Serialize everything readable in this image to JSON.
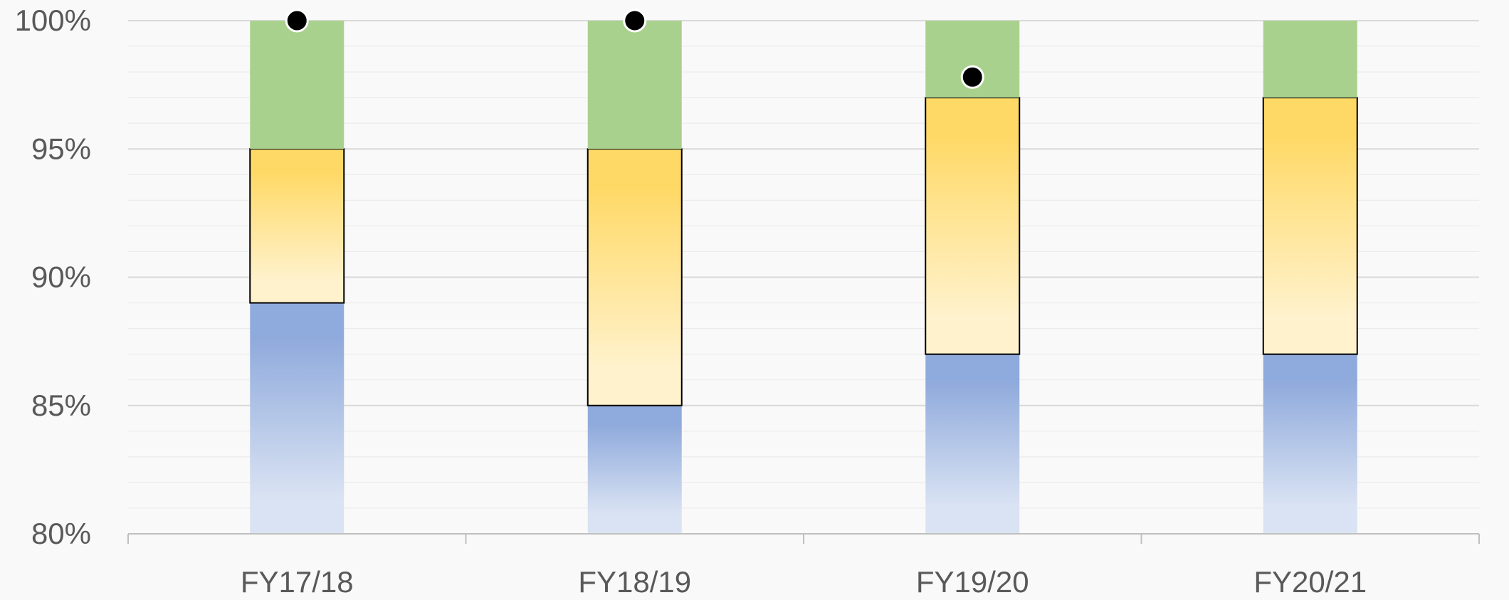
{
  "chart_data": {
    "type": "bar",
    "stacked": true,
    "categories": [
      "FY17/18",
      "FY18/19",
      "FY19/20",
      "FY20/21"
    ],
    "ylim": [
      0.8,
      1.0
    ],
    "yticks": [
      "80%",
      "85%",
      "90%",
      "95%",
      "100%"
    ],
    "ytick_values": [
      0.8,
      0.85,
      0.9,
      0.95,
      1.0
    ],
    "grid": true,
    "legend": "none",
    "bands": [
      {
        "key": "lower",
        "from": [
          0.8,
          0.8,
          0.8,
          0.8
        ],
        "to": [
          0.89,
          0.85,
          0.87,
          0.87
        ],
        "color_top": "#8faadc",
        "color_bottom": "#dae3f3",
        "outlined": false
      },
      {
        "key": "middle",
        "from": [
          0.89,
          0.85,
          0.87,
          0.87
        ],
        "to": [
          0.95,
          0.95,
          0.97,
          0.97
        ],
        "color_top": "#ffd966",
        "color_bottom": "#fff2cc",
        "outlined": true
      },
      {
        "key": "upper",
        "from": [
          0.95,
          0.95,
          0.97,
          0.97
        ],
        "to": [
          1.0,
          1.0,
          1.0,
          1.0
        ],
        "color_top": "#a9d18e",
        "color_bottom": "#a9d18e",
        "outlined": false
      }
    ],
    "points": [
      1.0,
      1.0,
      0.978,
      null
    ],
    "colors": {
      "point": "#000000",
      "point_edge": "#ffffff",
      "grid": "#d9d9d9",
      "axis": "#bfbfbf",
      "tick_text": "#595959"
    }
  }
}
